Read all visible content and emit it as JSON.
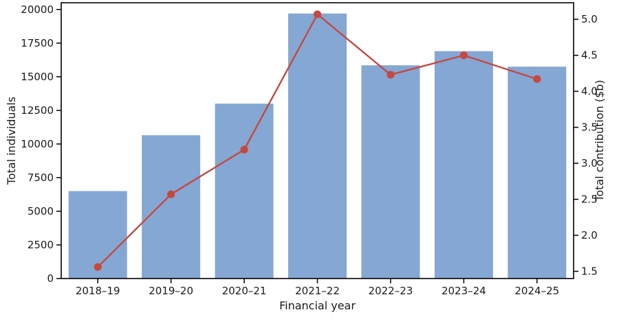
{
  "figure": {
    "background": "#ffffff",
    "spine_color": "#000000",
    "text_color": "#1a1a1a"
  },
  "chart_data": {
    "type": "combo_bar_line",
    "title": "",
    "categories": [
      "2018–19",
      "2019–20",
      "2020–21",
      "2021–22",
      "2022–23",
      "2023–24",
      "2024–25"
    ],
    "series": [
      {
        "name": "Total individuals",
        "kind": "bar",
        "axis": "left",
        "color": "#85a7d3",
        "values": [
          6500,
          10650,
          13000,
          19700,
          15850,
          16900,
          15750
        ]
      },
      {
        "name": "Total contribution ($b)",
        "kind": "line",
        "axis": "right",
        "color": "#c4493f",
        "marker": "circle",
        "values": [
          1.56,
          2.57,
          3.19,
          5.07,
          4.23,
          4.5,
          4.17
        ]
      }
    ],
    "xlabel": "Financial year",
    "left_axis": {
      "label": "Total individuals",
      "ticks": [
        0,
        2500,
        5000,
        7500,
        10000,
        12500,
        15000,
        17500,
        20000
      ],
      "range": [
        0,
        20500
      ],
      "decimals": 0
    },
    "right_axis": {
      "label": "Total contribution ($b)",
      "ticks": [
        1.5,
        2.0,
        2.5,
        3.0,
        3.5,
        4.0,
        4.5,
        5.0
      ],
      "range": [
        1.4,
        5.23
      ],
      "decimals": 1
    },
    "grid": false,
    "legend": "none"
  }
}
